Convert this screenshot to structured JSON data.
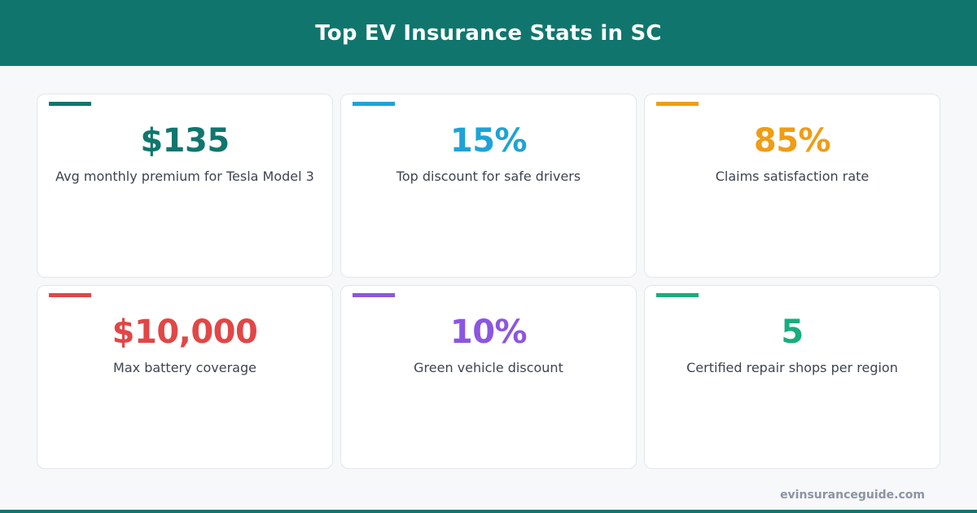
{
  "header": {
    "title": "Top EV Insurance Stats in SC",
    "background_color": "#10766d"
  },
  "cards": [
    {
      "value": "$135",
      "label": "Avg monthly premium for Tesla Model 3",
      "color": "#10766d"
    },
    {
      "value": "15%",
      "label": "Top discount for safe drivers",
      "color": "#1ea3d6"
    },
    {
      "value": "85%",
      "label": "Claims satisfaction rate",
      "color": "#ef9d14"
    },
    {
      "value": "$10,000",
      "label": "Max battery coverage",
      "color": "#e24646"
    },
    {
      "value": "10%",
      "label": "Green vehicle discount",
      "color": "#8c56e0"
    },
    {
      "value": "5",
      "label": "Certified repair shops per region",
      "color": "#18ad7c"
    }
  ],
  "footer": {
    "url": "evinsuranceguide.com",
    "bar_color": "#10766d"
  }
}
